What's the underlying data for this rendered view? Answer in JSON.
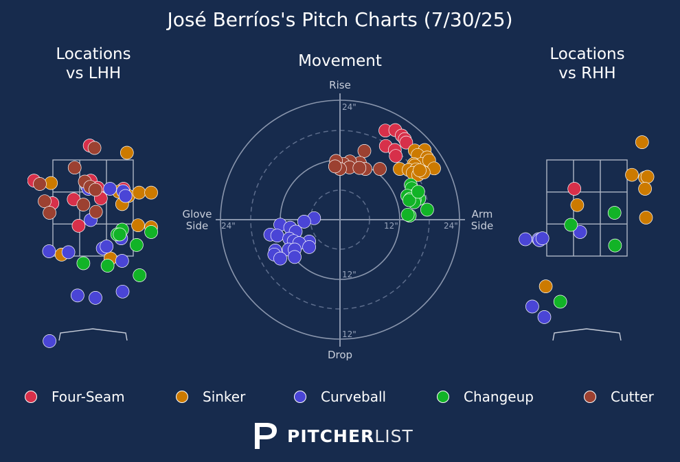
{
  "title": "José Berríos's Pitch Charts (7/30/25)",
  "panels": {
    "lhh_title": "Locations\nvs LHH",
    "movement_title": "Movement",
    "rhh_title": "Locations\nvs RHH"
  },
  "movement_labels": {
    "rise": "Rise",
    "drop": "Drop",
    "glove_side": "Glove\nSide",
    "arm_side": "Arm\nSide",
    "rings": [
      "24\"",
      "12\"",
      "12\"",
      "24\"",
      "12\"",
      "24\""
    ]
  },
  "legend": [
    {
      "label": "Four-Seam",
      "color": "#d7304a"
    },
    {
      "label": "Sinker",
      "color": "#cc7a00"
    },
    {
      "label": "Curveball",
      "color": "#4a45d6"
    },
    {
      "label": "Changeup",
      "color": "#12b327"
    },
    {
      "label": "Cutter",
      "color": "#9c4131"
    }
  ],
  "brand": {
    "bold": "PITCHER",
    "light": "LIST"
  },
  "chart_data": [
    {
      "type": "scatter",
      "name": "Locations vs LHH",
      "xlabel": "",
      "ylabel": "",
      "units": "plate location (ft); strike zone x -0.83 to 0.83, y 1.5 to 3.5",
      "xlim": [
        -1.25,
        1.25
      ],
      "ylim": [
        -0.1,
        4.2
      ],
      "series": [
        {
          "pitch": "Four-Seam",
          "points": [
            [
              -0.07,
              3.8
            ],
            [
              -1.22,
              3.07
            ],
            [
              -0.05,
              3.07
            ],
            [
              0.1,
              2.92
            ],
            [
              0.63,
              2.9
            ],
            [
              -0.4,
              2.68
            ],
            [
              0.16,
              2.7
            ],
            [
              -0.84,
              2.6
            ],
            [
              -0.3,
              2.13
            ]
          ]
        },
        {
          "pitch": "Sinker",
          "points": [
            [
              0.7,
              3.65
            ],
            [
              -0.87,
              3.02
            ],
            [
              0.53,
              2.84
            ],
            [
              0.73,
              2.75
            ],
            [
              0.95,
              2.82
            ],
            [
              0.6,
              2.58
            ],
            [
              1.2,
              2.82
            ],
            [
              0.93,
              2.14
            ],
            [
              1.2,
              2.1
            ],
            [
              -0.65,
              1.53
            ],
            [
              0.36,
              1.45
            ]
          ]
        },
        {
          "pitch": "Curveball",
          "points": [
            [
              -0.12,
              2.95
            ],
            [
              -0.1,
              2.9
            ],
            [
              0.35,
              2.9
            ],
            [
              0.62,
              2.85
            ],
            [
              0.67,
              2.75
            ],
            [
              -0.05,
              2.25
            ],
            [
              0.58,
              1.87
            ],
            [
              0.2,
              1.66
            ],
            [
              0.28,
              1.7
            ],
            [
              -0.91,
              1.6
            ],
            [
              -0.51,
              1.58
            ],
            [
              0.6,
              1.4
            ],
            [
              -0.32,
              0.68
            ],
            [
              0.05,
              0.63
            ],
            [
              0.61,
              0.76
            ],
            [
              -0.9,
              -0.27
            ]
          ]
        },
        {
          "pitch": "Changeup",
          "points": [
            [
              0.6,
              2.05
            ],
            [
              0.5,
              1.95
            ],
            [
              0.55,
              1.95
            ],
            [
              0.9,
              1.73
            ],
            [
              1.2,
              2.0
            ],
            [
              -0.2,
              1.35
            ],
            [
              0.3,
              1.3
            ],
            [
              0.96,
              1.1
            ]
          ]
        },
        {
          "pitch": "Cutter",
          "points": [
            [
              0.03,
              3.75
            ],
            [
              -0.38,
              3.34
            ],
            [
              -1.1,
              3.0
            ],
            [
              -0.17,
              3.05
            ],
            [
              -0.06,
              2.94
            ],
            [
              0.05,
              2.88
            ],
            [
              -1.0,
              2.64
            ],
            [
              -0.2,
              2.57
            ],
            [
              0.06,
              2.42
            ],
            [
              -0.9,
              2.4
            ]
          ]
        }
      ]
    },
    {
      "type": "scatter",
      "name": "Movement",
      "units": "pitch movement in inches; x glove side (-) to arm side (+), y drop (-) to rise (+)",
      "xlim": [
        -24,
        24
      ],
      "ylim": [
        -24,
        24
      ],
      "ring_labels": [
        12,
        24
      ],
      "series": [
        {
          "pitch": "Four-Seam",
          "points": [
            [
              9.1,
              17.9
            ],
            [
              11.1,
              18.0
            ],
            [
              12.4,
              16.9
            ],
            [
              13.0,
              16.2
            ],
            [
              13.3,
              15.5
            ],
            [
              9.2,
              14.8
            ],
            [
              11.0,
              14.0
            ],
            [
              11.2,
              12.8
            ]
          ]
        },
        {
          "pitch": "Sinker",
          "points": [
            [
              15.0,
              13.9
            ],
            [
              17.0,
              14.0
            ],
            [
              15.6,
              13.0
            ],
            [
              17.5,
              12.5
            ],
            [
              14.8,
              11.2
            ],
            [
              16.4,
              11.2
            ],
            [
              17.9,
              11.9
            ],
            [
              15.0,
              10.9
            ],
            [
              12.0,
              10.2
            ],
            [
              13.8,
              10.0
            ],
            [
              15.3,
              10.1
            ],
            [
              18.9,
              10.3
            ],
            [
              14.6,
              9.4
            ],
            [
              15.7,
              9.0
            ],
            [
              16.8,
              9.5
            ],
            [
              16.0,
              9.9
            ]
          ]
        },
        {
          "pitch": "Curveball",
          "points": [
            [
              -5.2,
              0.3
            ],
            [
              -7.2,
              -0.4
            ],
            [
              -12.0,
              -1.0
            ],
            [
              -10.0,
              -1.6
            ],
            [
              -8.9,
              -2.4
            ],
            [
              -14.0,
              -3.0
            ],
            [
              -12.6,
              -3.2
            ],
            [
              -10.2,
              -3.8
            ],
            [
              -6.2,
              -4.4
            ],
            [
              -9.3,
              -4.3
            ],
            [
              -8.2,
              -4.7
            ],
            [
              -6.2,
              -5.5
            ],
            [
              -13.0,
              -6.2
            ],
            [
              -10.3,
              -6.0
            ],
            [
              -9.1,
              -6.0
            ],
            [
              -13.2,
              -7.0
            ],
            [
              -9.1,
              -7.5
            ],
            [
              -12.0,
              -7.8
            ]
          ]
        },
        {
          "pitch": "Changeup",
          "points": [
            [
              14.2,
              7.0
            ],
            [
              14.4,
              6.3
            ],
            [
              15.0,
              4.9
            ],
            [
              13.5,
              4.8
            ],
            [
              14.1,
              4.2
            ],
            [
              15.9,
              4.2
            ],
            [
              15.0,
              4.0
            ],
            [
              14.9,
              3.5
            ],
            [
              13.9,
              3.9
            ],
            [
              17.5,
              2.0
            ],
            [
              14.0,
              0.8
            ],
            [
              13.6,
              1.0
            ],
            [
              15.7,
              5.6
            ]
          ]
        },
        {
          "pitch": "Cutter",
          "points": [
            [
              4.9,
              13.8
            ],
            [
              4.0,
              11.4
            ],
            [
              5.1,
              10.2
            ],
            [
              2.0,
              11.7
            ],
            [
              0.7,
              11.2
            ],
            [
              -0.8,
              11.8
            ],
            [
              1.9,
              10.5
            ],
            [
              3.9,
              10.4
            ],
            [
              0.0,
              10.2
            ],
            [
              -1.0,
              10.7
            ],
            [
              8.0,
              10.2
            ]
          ]
        }
      ]
    },
    {
      "type": "scatter",
      "name": "Locations vs RHH",
      "units": "plate location (ft); strike zone x -0.83 to 0.83, y 1.5 to 3.5",
      "xlim": [
        -1.25,
        1.25
      ],
      "ylim": [
        -0.1,
        4.2
      ],
      "series": [
        {
          "pitch": "Four-Seam",
          "points": [
            [
              -0.26,
              2.9
            ]
          ]
        },
        {
          "pitch": "Sinker",
          "points": [
            [
              1.14,
              3.87
            ],
            [
              0.93,
              3.19
            ],
            [
              1.2,
              3.13
            ],
            [
              1.25,
              3.15
            ],
            [
              1.2,
              2.9
            ],
            [
              -0.2,
              2.56
            ],
            [
              1.22,
              2.3
            ],
            [
              -0.85,
              0.87
            ]
          ]
        },
        {
          "pitch": "Curveball",
          "points": [
            [
              -1.27,
              1.85
            ],
            [
              -1.0,
              1.85
            ],
            [
              -0.98,
              1.83
            ],
            [
              -0.92,
              1.87
            ],
            [
              -0.14,
              2.0
            ],
            [
              -1.13,
              0.45
            ],
            [
              -0.88,
              0.23
            ]
          ]
        },
        {
          "pitch": "Changeup",
          "points": [
            [
              -0.33,
              2.15
            ],
            [
              0.57,
              2.4
            ],
            [
              0.58,
              1.72
            ],
            [
              -0.55,
              0.55
            ]
          ]
        }
      ]
    }
  ]
}
